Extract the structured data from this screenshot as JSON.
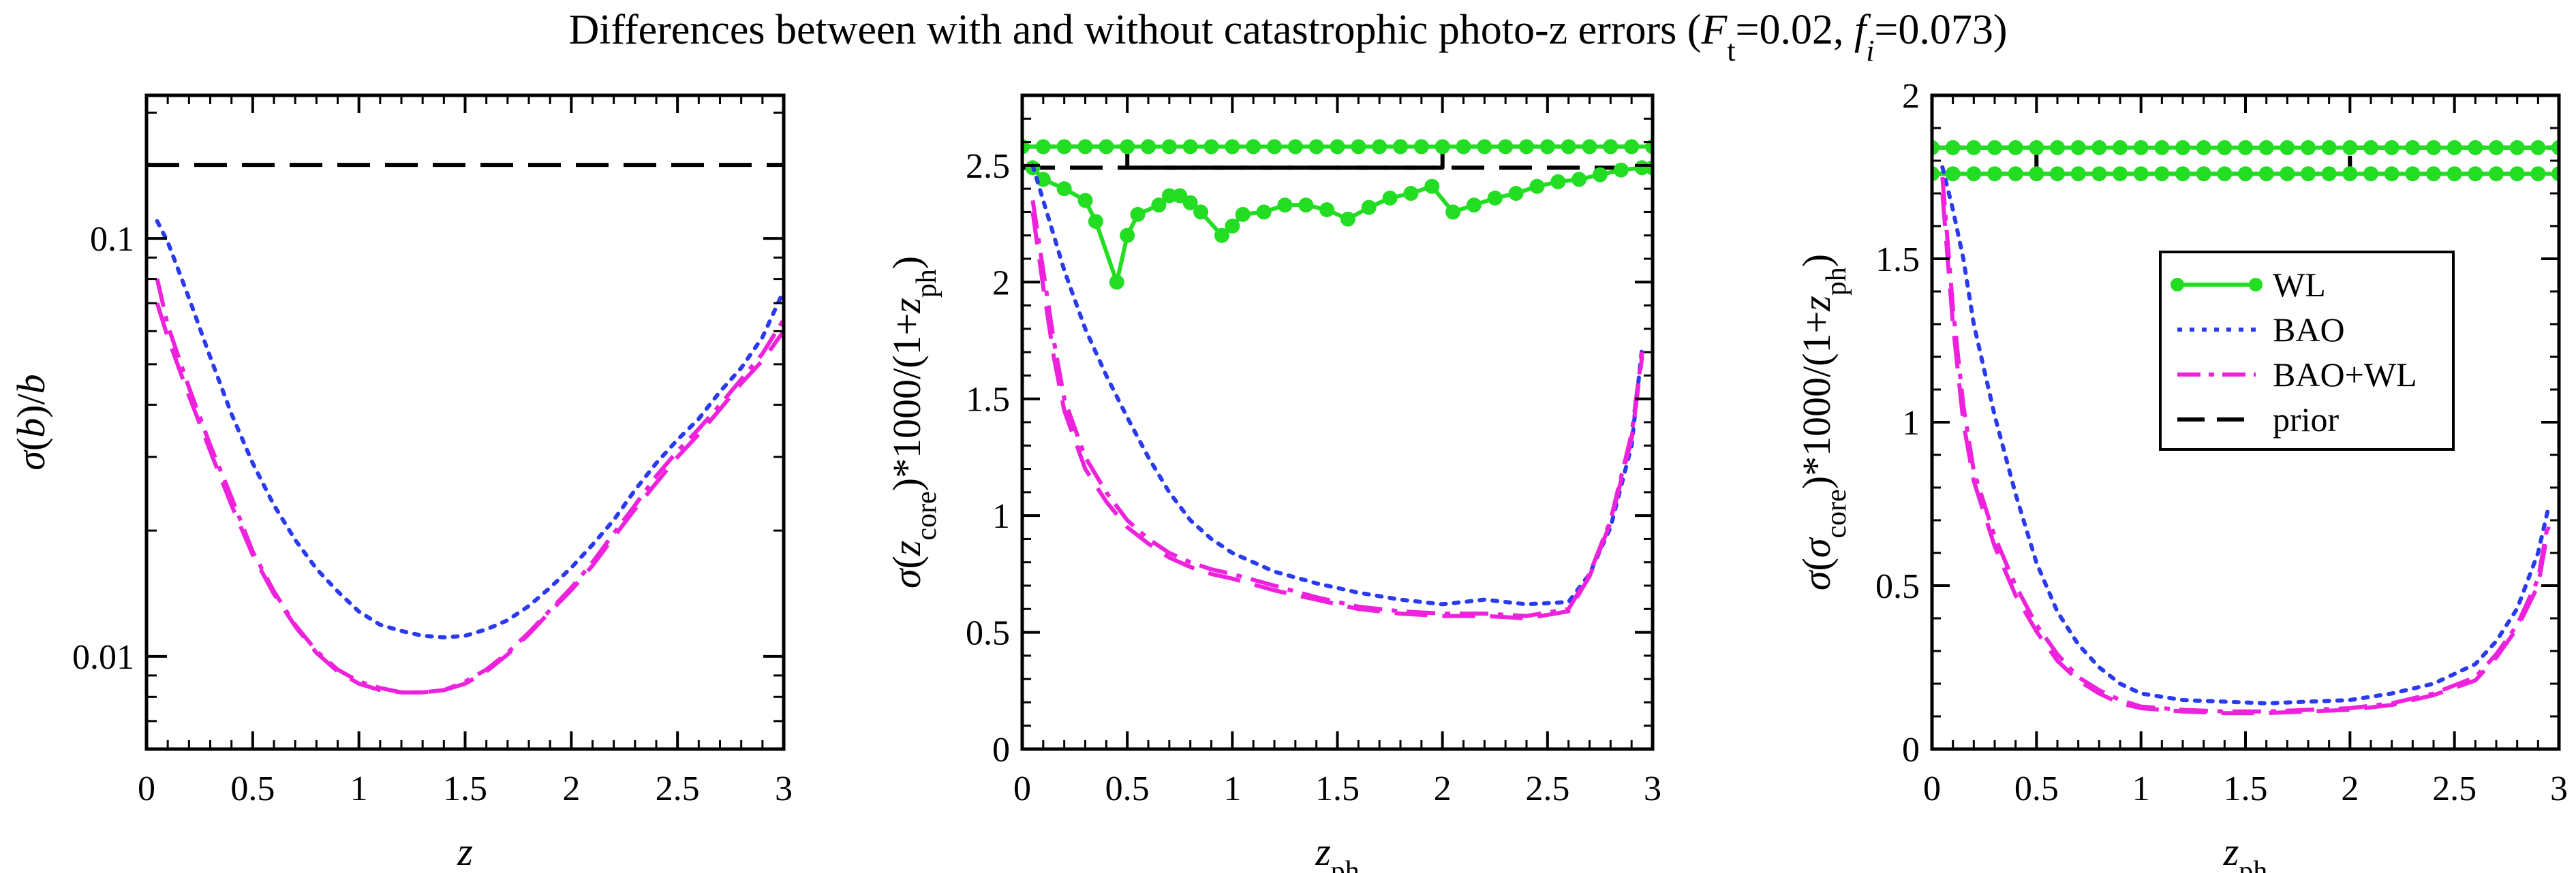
{
  "figure_title": "Differences between with and without catastrophic photo-z errors (",
  "title_math": {
    "F": "F",
    "F_sub": "t",
    "F_eq": "=0.02, ",
    "f": "f",
    "f_sub": "i",
    "f_eq": "=0.073)"
  },
  "colors": {
    "WL": "#22dd22",
    "BAO": "#2a3aee",
    "BAO+WL": "#ee22dd",
    "prior": "#000000"
  },
  "chart_data": [
    {
      "type": "line",
      "xlabel": "z",
      "ylabel": "σ(b)/b",
      "xlim": [
        0,
        3
      ],
      "ylim": [
        0.006,
        0.22
      ],
      "yscale": "log",
      "xticks": [
        "0",
        "0.5",
        "1",
        "1.5",
        "2",
        "2.5",
        "3"
      ],
      "yticks": [
        "0.01",
        "0.1"
      ],
      "series": [
        {
          "name": "prior",
          "style": "dashed",
          "x": [
            0,
            3
          ],
          "y": [
            0.15,
            0.15
          ]
        },
        {
          "name": "BAO",
          "style": "dotted",
          "x": [
            0.05,
            0.1,
            0.2,
            0.3,
            0.4,
            0.5,
            0.6,
            0.7,
            0.8,
            0.9,
            1.0,
            1.1,
            1.2,
            1.3,
            1.4,
            1.5,
            1.6,
            1.7,
            1.8,
            1.9,
            2.0,
            2.1,
            2.2,
            2.3,
            2.4,
            2.5,
            2.6,
            2.7,
            2.8,
            2.9,
            3.0
          ],
          "y": [
            0.11,
            0.098,
            0.072,
            0.052,
            0.038,
            0.029,
            0.023,
            0.019,
            0.0162,
            0.0143,
            0.0128,
            0.0119,
            0.0115,
            0.0112,
            0.0111,
            0.0112,
            0.0116,
            0.0122,
            0.0132,
            0.0146,
            0.0163,
            0.0185,
            0.0212,
            0.025,
            0.029,
            0.033,
            0.037,
            0.043,
            0.049,
            0.058,
            0.075
          ]
        },
        {
          "name": "BAO+WL",
          "style": "dashdot",
          "x": [
            0.05,
            0.1,
            0.2,
            0.3,
            0.4,
            0.5,
            0.6,
            0.7,
            0.8,
            0.9,
            1.0,
            1.1,
            1.2,
            1.3,
            1.4,
            1.5,
            1.6,
            1.7,
            1.8,
            1.9,
            2.0,
            2.1,
            2.2,
            2.3,
            2.4,
            2.5,
            2.6,
            2.7,
            2.8,
            2.9,
            3.0
          ],
          "y": [
            0.08,
            0.062,
            0.044,
            0.032,
            0.024,
            0.0178,
            0.0143,
            0.0119,
            0.0103,
            0.0093,
            0.0087,
            0.0084,
            0.0082,
            0.0082,
            0.0083,
            0.0087,
            0.0093,
            0.0102,
            0.0114,
            0.0129,
            0.0146,
            0.0168,
            0.0197,
            0.023,
            0.027,
            0.031,
            0.035,
            0.04,
            0.046,
            0.053,
            0.064
          ]
        },
        {
          "name": "BAO+WL dashed",
          "style": "dashed",
          "x": [
            0.05,
            0.1,
            0.2,
            0.3,
            0.4,
            0.5,
            0.6,
            0.7,
            0.8,
            0.9,
            1.0,
            1.1,
            1.2,
            1.3,
            1.4,
            1.5,
            1.6,
            1.7,
            1.8,
            1.9,
            2.0,
            2.1,
            2.2,
            2.3,
            2.4,
            2.5,
            2.6,
            2.7,
            2.8,
            2.9,
            3.0
          ],
          "y": [
            0.07,
            0.058,
            0.042,
            0.031,
            0.023,
            0.0175,
            0.0141,
            0.0118,
            0.0102,
            0.0092,
            0.0086,
            0.0083,
            0.0082,
            0.0082,
            0.0083,
            0.0086,
            0.0092,
            0.0101,
            0.0113,
            0.0128,
            0.0144,
            0.0165,
            0.0193,
            0.0225,
            0.026,
            0.03,
            0.034,
            0.039,
            0.045,
            0.051,
            0.06
          ]
        }
      ]
    },
    {
      "type": "line",
      "xlabel": "zph",
      "ylabel": "σ(zcore)*1000/(1+zph)",
      "xlim": [
        0,
        3
      ],
      "ylim": [
        0,
        2.8
      ],
      "xticks": [
        "0",
        "0.5",
        "1",
        "1.5",
        "2",
        "2.5",
        "3"
      ],
      "yticks": [
        "0",
        "0.5",
        "1",
        "1.5",
        "2",
        "2.5"
      ],
      "series": [
        {
          "name": "prior",
          "style": "dashed",
          "x": [
            0,
            3
          ],
          "y": [
            2.49,
            2.49
          ]
        },
        {
          "name": "prior alt",
          "style": "dashed",
          "x": [
            0.0,
            0.5,
            0.5,
            2.0,
            2.0,
            3.0
          ],
          "y": [
            2.58,
            2.58,
            2.49,
            2.49,
            2.58,
            2.58
          ]
        },
        {
          "name": "WL",
          "style": "markers",
          "x": [
            0.0,
            0.1,
            0.2,
            0.3,
            0.4,
            0.5,
            0.6,
            0.7,
            0.8,
            0.9,
            1.0,
            1.1,
            1.2,
            1.3,
            1.4,
            1.5,
            1.6,
            1.7,
            1.8,
            1.9,
            2.0,
            2.1,
            2.2,
            2.3,
            2.4,
            2.5,
            2.6,
            2.7,
            2.8,
            2.9,
            3.0
          ],
          "y": [
            2.58,
            2.58,
            2.58,
            2.58,
            2.58,
            2.58,
            2.58,
            2.58,
            2.58,
            2.58,
            2.58,
            2.58,
            2.58,
            2.58,
            2.58,
            2.58,
            2.58,
            2.58,
            2.58,
            2.58,
            2.58,
            2.58,
            2.58,
            2.58,
            2.58,
            2.58,
            2.58,
            2.58,
            2.58,
            2.58,
            2.58
          ]
        },
        {
          "name": "WL lower",
          "style": "markers",
          "x": [
            0.05,
            0.1,
            0.2,
            0.3,
            0.35,
            0.45,
            0.5,
            0.55,
            0.65,
            0.7,
            0.75,
            0.8,
            0.85,
            0.95,
            1.0,
            1.05,
            1.15,
            1.25,
            1.35,
            1.45,
            1.55,
            1.65,
            1.75,
            1.85,
            1.95,
            2.05,
            2.15,
            2.25,
            2.35,
            2.45,
            2.55,
            2.65,
            2.75,
            2.85,
            2.95,
            3.0
          ],
          "y": [
            2.49,
            2.44,
            2.4,
            2.35,
            2.26,
            2.0,
            2.2,
            2.29,
            2.33,
            2.37,
            2.37,
            2.34,
            2.3,
            2.2,
            2.24,
            2.29,
            2.3,
            2.33,
            2.33,
            2.31,
            2.27,
            2.32,
            2.36,
            2.38,
            2.41,
            2.3,
            2.33,
            2.36,
            2.38,
            2.41,
            2.43,
            2.44,
            2.46,
            2.48,
            2.49,
            2.49
          ]
        },
        {
          "name": "BAO",
          "style": "dotted",
          "x": [
            0.05,
            0.1,
            0.15,
            0.2,
            0.3,
            0.4,
            0.5,
            0.6,
            0.7,
            0.8,
            0.9,
            1.0,
            1.2,
            1.4,
            1.6,
            1.8,
            2.0,
            2.2,
            2.4,
            2.6,
            2.7,
            2.8,
            2.9,
            2.95
          ],
          "y": [
            2.5,
            2.35,
            2.2,
            2.05,
            1.8,
            1.6,
            1.42,
            1.25,
            1.1,
            0.98,
            0.9,
            0.84,
            0.76,
            0.71,
            0.67,
            0.64,
            0.62,
            0.64,
            0.62,
            0.63,
            0.75,
            0.95,
            1.3,
            1.72
          ]
        },
        {
          "name": "BAO+WL",
          "style": "dashdot",
          "x": [
            0.05,
            0.1,
            0.15,
            0.2,
            0.3,
            0.4,
            0.5,
            0.6,
            0.7,
            0.8,
            0.9,
            1.0,
            1.2,
            1.4,
            1.6,
            1.8,
            2.0,
            2.2,
            2.4,
            2.6,
            2.7,
            2.8,
            2.9,
            2.95
          ],
          "y": [
            2.35,
            2.05,
            1.75,
            1.5,
            1.25,
            1.1,
            0.98,
            0.9,
            0.84,
            0.8,
            0.77,
            0.75,
            0.7,
            0.65,
            0.61,
            0.59,
            0.58,
            0.58,
            0.57,
            0.6,
            0.75,
            0.98,
            1.35,
            1.7
          ]
        },
        {
          "name": "BAO+WL dashed",
          "style": "dashed",
          "x": [
            0.05,
            0.1,
            0.15,
            0.2,
            0.3,
            0.4,
            0.5,
            0.6,
            0.7,
            0.8,
            0.9,
            1.0,
            1.2,
            1.4,
            1.6,
            1.8,
            2.0,
            2.2,
            2.4,
            2.6,
            2.7,
            2.8,
            2.9,
            2.95
          ],
          "y": [
            2.3,
            1.98,
            1.68,
            1.45,
            1.2,
            1.06,
            0.95,
            0.88,
            0.82,
            0.78,
            0.75,
            0.73,
            0.68,
            0.64,
            0.6,
            0.58,
            0.57,
            0.57,
            0.56,
            0.59,
            0.74,
            0.97,
            1.33,
            1.68
          ]
        }
      ]
    },
    {
      "type": "line",
      "xlabel": "zph",
      "ylabel": "σ(σcore)*1000/(1+zph)",
      "xlim": [
        0,
        3
      ],
      "ylim": [
        0,
        2
      ],
      "xticks": [
        "0",
        "0.5",
        "1",
        "1.5",
        "2",
        "2.5",
        "3"
      ],
      "yticks": [
        "0",
        "0.5",
        "1",
        "1.5",
        "2"
      ],
      "legend": [
        "WL",
        "BAO",
        "BAO+WL",
        "prior"
      ],
      "legend_position": "right",
      "series": [
        {
          "name": "prior",
          "style": "dashed",
          "x": [
            0,
            3
          ],
          "y": [
            1.76,
            1.76
          ]
        },
        {
          "name": "prior alt",
          "style": "dashed",
          "x": [
            0.0,
            0.5,
            0.5,
            2.0,
            2.0,
            3.0
          ],
          "y": [
            1.84,
            1.84,
            1.76,
            1.76,
            1.84,
            1.84
          ]
        },
        {
          "name": "WL",
          "style": "markers",
          "x": [
            0.0,
            0.1,
            0.2,
            0.3,
            0.4,
            0.5,
            0.6,
            0.7,
            0.8,
            0.9,
            1.0,
            1.1,
            1.2,
            1.3,
            1.4,
            1.5,
            1.6,
            1.7,
            1.8,
            1.9,
            2.0,
            2.1,
            2.2,
            2.3,
            2.4,
            2.5,
            2.6,
            2.7,
            2.8,
            2.9,
            3.0
          ],
          "y": [
            1.84,
            1.84,
            1.84,
            1.84,
            1.84,
            1.84,
            1.84,
            1.84,
            1.84,
            1.84,
            1.84,
            1.84,
            1.84,
            1.84,
            1.84,
            1.84,
            1.84,
            1.84,
            1.84,
            1.84,
            1.84,
            1.84,
            1.84,
            1.84,
            1.84,
            1.84,
            1.84,
            1.84,
            1.84,
            1.84,
            1.84
          ]
        },
        {
          "name": "WL lower",
          "style": "markers",
          "x": [
            0.0,
            0.1,
            0.2,
            0.3,
            0.4,
            0.5,
            0.6,
            0.7,
            0.8,
            0.9,
            1.0,
            1.1,
            1.2,
            1.3,
            1.4,
            1.5,
            1.6,
            1.7,
            1.8,
            1.9,
            2.0,
            2.1,
            2.2,
            2.3,
            2.4,
            2.5,
            2.6,
            2.7,
            2.8,
            2.9,
            3.0
          ],
          "y": [
            1.76,
            1.76,
            1.76,
            1.76,
            1.76,
            1.76,
            1.76,
            1.76,
            1.76,
            1.76,
            1.76,
            1.76,
            1.76,
            1.76,
            1.76,
            1.76,
            1.76,
            1.76,
            1.76,
            1.76,
            1.76,
            1.76,
            1.76,
            1.76,
            1.76,
            1.76,
            1.76,
            1.76,
            1.76,
            1.76,
            1.76
          ]
        },
        {
          "name": "BAO",
          "style": "dotted",
          "x": [
            0.05,
            0.1,
            0.15,
            0.2,
            0.3,
            0.4,
            0.5,
            0.6,
            0.7,
            0.8,
            0.9,
            1.0,
            1.2,
            1.4,
            1.6,
            1.8,
            2.0,
            2.2,
            2.4,
            2.6,
            2.7,
            2.8,
            2.9,
            2.95
          ],
          "y": [
            1.78,
            1.65,
            1.5,
            1.3,
            1.02,
            0.78,
            0.57,
            0.42,
            0.32,
            0.25,
            0.2,
            0.17,
            0.15,
            0.145,
            0.14,
            0.145,
            0.15,
            0.17,
            0.2,
            0.26,
            0.33,
            0.43,
            0.6,
            0.74
          ]
        },
        {
          "name": "BAO+WL",
          "style": "dashdot",
          "x": [
            0.05,
            0.1,
            0.15,
            0.2,
            0.3,
            0.4,
            0.5,
            0.6,
            0.7,
            0.8,
            0.9,
            1.0,
            1.2,
            1.4,
            1.6,
            1.8,
            2.0,
            2.2,
            2.4,
            2.6,
            2.7,
            2.8,
            2.9,
            2.95
          ],
          "y": [
            1.75,
            1.35,
            1.05,
            0.85,
            0.65,
            0.5,
            0.38,
            0.29,
            0.22,
            0.18,
            0.15,
            0.13,
            0.12,
            0.115,
            0.115,
            0.12,
            0.125,
            0.14,
            0.17,
            0.22,
            0.29,
            0.38,
            0.52,
            0.7
          ]
        },
        {
          "name": "BAO+WL dashed",
          "style": "dashed",
          "x": [
            0.05,
            0.1,
            0.15,
            0.2,
            0.3,
            0.4,
            0.5,
            0.6,
            0.7,
            0.8,
            0.9,
            1.0,
            1.2,
            1.4,
            1.6,
            1.8,
            2.0,
            2.2,
            2.4,
            2.6,
            2.7,
            2.8,
            2.9,
            2.95
          ],
          "y": [
            1.7,
            1.3,
            1.0,
            0.82,
            0.62,
            0.47,
            0.36,
            0.27,
            0.21,
            0.17,
            0.14,
            0.125,
            0.115,
            0.11,
            0.11,
            0.115,
            0.12,
            0.135,
            0.165,
            0.21,
            0.28,
            0.37,
            0.5,
            0.68
          ]
        }
      ]
    }
  ]
}
